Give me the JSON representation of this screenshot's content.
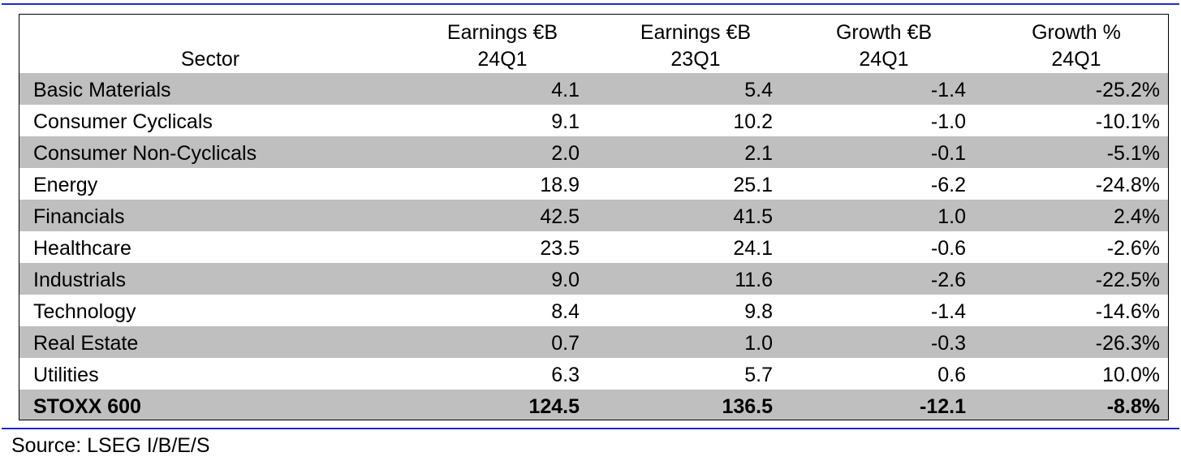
{
  "table": {
    "headers": [
      {
        "line1": "",
        "line2": "Sector"
      },
      {
        "line1": "Earnings €B",
        "line2": "24Q1"
      },
      {
        "line1": "Earnings €B",
        "line2": "23Q1"
      },
      {
        "line1": "Growth €B",
        "line2": "24Q1"
      },
      {
        "line1": "Growth %",
        "line2": "24Q1"
      }
    ],
    "rows": [
      {
        "sector": "Basic Materials",
        "earn24": "4.1",
        "earn23": "5.4",
        "growth_b": "-1.4",
        "growth_pct": "-25.2%"
      },
      {
        "sector": "Consumer Cyclicals",
        "earn24": "9.1",
        "earn23": "10.2",
        "growth_b": "-1.0",
        "growth_pct": "-10.1%"
      },
      {
        "sector": "Consumer Non-Cyclicals",
        "earn24": "2.0",
        "earn23": "2.1",
        "growth_b": "-0.1",
        "growth_pct": "-5.1%"
      },
      {
        "sector": "Energy",
        "earn24": "18.9",
        "earn23": "25.1",
        "growth_b": "-6.2",
        "growth_pct": "-24.8%"
      },
      {
        "sector": "Financials",
        "earn24": "42.5",
        "earn23": "41.5",
        "growth_b": "1.0",
        "growth_pct": "2.4%"
      },
      {
        "sector": "Healthcare",
        "earn24": "23.5",
        "earn23": "24.1",
        "growth_b": "-0.6",
        "growth_pct": "-2.6%"
      },
      {
        "sector": "Industrials",
        "earn24": "9.0",
        "earn23": "11.6",
        "growth_b": "-2.6",
        "growth_pct": "-22.5%"
      },
      {
        "sector": "Technology",
        "earn24": "8.4",
        "earn23": "9.8",
        "growth_b": "-1.4",
        "growth_pct": "-14.6%"
      },
      {
        "sector": "Real Estate",
        "earn24": "0.7",
        "earn23": "1.0",
        "growth_b": "-0.3",
        "growth_pct": "-26.3%"
      },
      {
        "sector": "Utilities",
        "earn24": "6.3",
        "earn23": "5.7",
        "growth_b": "0.6",
        "growth_pct": "10.0%"
      },
      {
        "sector": "STOXX 600",
        "earn24": "124.5",
        "earn23": "136.5",
        "growth_b": "-12.1",
        "growth_pct": "-8.8%"
      }
    ]
  },
  "source": "Source: LSEG I/B/E/S",
  "colors": {
    "rule": "#1f2ac8",
    "shade": "#bfbfbf"
  }
}
